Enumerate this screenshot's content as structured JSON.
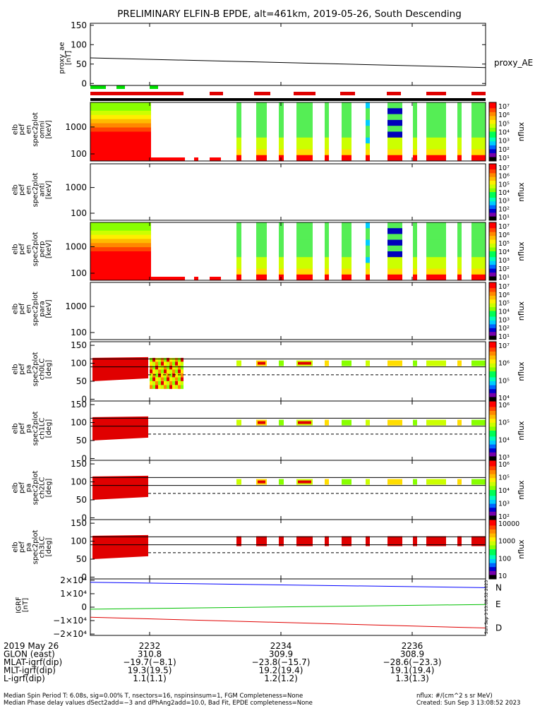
{
  "title": "PRELIMINARY ELFIN-B EPDE, alt=461km, 2019-05-26, South Descending",
  "chart_data": {
    "type": "line",
    "panels": [
      {
        "id": "proxy_ae",
        "ylabel": [
          "proxy_ae",
          "[nT]"
        ],
        "legend": "proxy_AE",
        "ylim": [
          -5,
          155
        ],
        "yticks": [
          "150",
          "100",
          "50",
          "0"
        ],
        "ytick_values": [
          150,
          100,
          50,
          0
        ],
        "line": {
          "x": [
            0,
            1
          ],
          "y": [
            66,
            41
          ]
        }
      },
      {
        "id": "en_omni",
        "ylabel": [
          "elb",
          "pef",
          "en",
          "spec2plot",
          "omni",
          "[keV]"
        ],
        "type": "spectrogram",
        "yticks": [
          "1000",
          "100"
        ],
        "zlabel": "nflux",
        "zticks": [
          "10⁷",
          "10⁶",
          "10⁵",
          "10⁴",
          "10³",
          "10²",
          "10¹"
        ]
      },
      {
        "id": "en_anti",
        "ylabel": [
          "elb",
          "pef",
          "en",
          "spec2plot",
          "anti",
          "[keV]"
        ],
        "type": "spectrogram",
        "yticks": [
          "1000",
          "100"
        ],
        "zlabel": "nflux",
        "zticks": [
          "10⁷",
          "10⁶",
          "10⁵",
          "10⁴",
          "10³",
          "10²",
          "10¹"
        ]
      },
      {
        "id": "en_perp",
        "ylabel": [
          "elb",
          "pef",
          "en",
          "spec2plot",
          "perp",
          "[keV]"
        ],
        "type": "spectrogram",
        "yticks": [
          "1000",
          "100"
        ],
        "zlabel": "nflux",
        "zticks": [
          "10⁷",
          "10⁶",
          "10⁵",
          "10⁴",
          "10³",
          "10²",
          "10¹"
        ]
      },
      {
        "id": "en_para",
        "ylabel": [
          "elb",
          "pef",
          "en",
          "spec2plot",
          "para",
          "[keV]"
        ],
        "type": "spectrogram",
        "yticks": [
          "1000",
          "100"
        ],
        "zlabel": "nflux",
        "zticks": [
          "10⁷",
          "10⁶",
          "10⁵",
          "10⁴",
          "10³",
          "10²",
          "10¹"
        ]
      },
      {
        "id": "pa_ch0",
        "ylabel": [
          "elb",
          "pef",
          "pa",
          "spec2plot",
          "ch0LC",
          "[deg]"
        ],
        "type": "spectrogram",
        "yticks": [
          "150",
          "100",
          "50",
          "0"
        ],
        "zlabel": "nflux",
        "zticks": [
          "10⁷",
          "10⁶",
          "10⁵",
          "10⁴"
        ]
      },
      {
        "id": "pa_ch1",
        "ylabel": [
          "elb",
          "pef",
          "pa",
          "spec2plot",
          "ch1LC",
          "[deg]"
        ],
        "type": "spectrogram",
        "yticks": [
          "150",
          "100",
          "50",
          "0"
        ],
        "zlabel": "nflux",
        "zticks": [
          "10⁶",
          "10⁵",
          "10⁴",
          "10³"
        ]
      },
      {
        "id": "pa_ch2",
        "ylabel": [
          "elb",
          "pef",
          "pa",
          "spec2plot",
          "ch2LC",
          "[deg]"
        ],
        "type": "spectrogram",
        "yticks": [
          "150",
          "100",
          "50",
          "0"
        ],
        "zlabel": "nflux",
        "zticks": [
          "10⁶",
          "10⁵",
          "10⁴",
          "10³",
          "10²"
        ]
      },
      {
        "id": "pa_ch3",
        "ylabel": [
          "elb",
          "pef",
          "pa",
          "spec2plot",
          "ch3LC",
          "[deg]"
        ],
        "type": "spectrogram",
        "yticks": [
          "150",
          "100",
          "50",
          "0"
        ],
        "zlabel": "nflux",
        "zticks": [
          "10000",
          "1000",
          "100",
          "10"
        ]
      },
      {
        "id": "igrf",
        "ylabel": [
          "IGRF",
          "[nT]"
        ],
        "yticks": [
          "2×10⁴",
          "1×10⁴",
          "0",
          "−1×10⁴",
          "−2×10⁴"
        ],
        "ytick_values": [
          20000,
          10000,
          0,
          -10000,
          -20000
        ],
        "ylim": [
          -21000,
          21000
        ],
        "series": [
          {
            "name": "N",
            "color": "#0000ff",
            "x": [
              0,
              1
            ],
            "y": [
              18500,
              14500
            ]
          },
          {
            "name": "E",
            "color": "#00c000",
            "x": [
              0,
              1
            ],
            "y": [
              -1500,
              2000
            ]
          },
          {
            "name": "D",
            "color": "#e00000",
            "x": [
              0,
              1
            ],
            "y": [
              -7500,
              -15500
            ]
          }
        ]
      }
    ],
    "colorbar_labels_side": "right"
  },
  "xaxis": {
    "row_labels": [
      "2019 May 26",
      "GLON (east)",
      "MLAT-igrf(dip)",
      "MLT-igrf(dip)",
      "L-igrf(dip)"
    ],
    "columns": [
      {
        "time": "2232",
        "values": [
          "310.8",
          "−19.7(−8.1)",
          "19.3(19.5)",
          "1.1(1.1)"
        ]
      },
      {
        "time": "2234",
        "values": [
          "309.9",
          "−23.8(−15.7)",
          "19.2(19.4)",
          "1.2(1.2)"
        ]
      },
      {
        "time": "2236",
        "values": [
          "308.9",
          "−28.6(−23.3)",
          "19.1(19.4)",
          "1.3(1.3)"
        ]
      }
    ]
  },
  "footer": {
    "line1": "Median Spin Period T: 6.08s, sig=0.00% T, nsectors=16, nspinsinsum=1, FGM Completeness=None",
    "line2": "Median Phase delay values dSect2add=−3 and dPhAng2add=10.0, Bad Fit, EPDE completeness=None",
    "units": "nflux: #/(cm^2 s sr MeV)",
    "created": "Created: Sun Sep  3 13:08:52 2023"
  },
  "side_stamp": "Sun Sep  3 13:08:52 2023",
  "colors": {
    "red": "#e00000",
    "green": "#00e000",
    "black": "#000000"
  }
}
